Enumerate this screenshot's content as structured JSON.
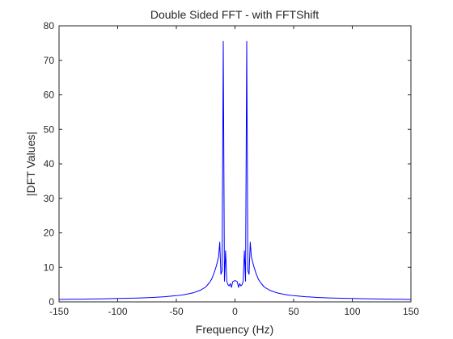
{
  "chart_data": {
    "type": "line",
    "title": "Double Sided FFT - with FFTShift",
    "xlabel": "Frequency (Hz)",
    "ylabel": "|DFT Values|",
    "xlim": [
      -150,
      150
    ],
    "ylim": [
      0,
      80
    ],
    "xticks": [
      -150,
      -100,
      -50,
      0,
      50,
      100,
      150
    ],
    "yticks": [
      0,
      10,
      20,
      30,
      40,
      50,
      60,
      70,
      80
    ],
    "grid": false,
    "series": [
      {
        "color": "#0000ff",
        "x": [
          -150,
          -140,
          -130,
          -120,
          -110,
          -100,
          -90,
          -80,
          -70,
          -60,
          -50,
          -45,
          -40,
          -35,
          -30,
          -25,
          -22,
          -20,
          -18,
          -16,
          -14,
          -13,
          -12,
          -11,
          -10,
          -9,
          -8,
          -7,
          -6,
          -5,
          -4,
          -3,
          -2,
          -1,
          0,
          1,
          2,
          3,
          4,
          5,
          6,
          7,
          8,
          9,
          10,
          11,
          12,
          13,
          14,
          16,
          18,
          20,
          22,
          25,
          30,
          35,
          40,
          45,
          50,
          60,
          70,
          80,
          90,
          100,
          110,
          120,
          130,
          140,
          150
        ],
        "y": [
          0.7,
          0.75,
          0.8,
          0.85,
          0.9,
          1.0,
          1.05,
          1.15,
          1.3,
          1.5,
          1.8,
          2.0,
          2.3,
          2.7,
          3.3,
          4.3,
          5.5,
          6.5,
          8.2,
          10.3,
          13.0,
          17.3,
          8.0,
          9.0,
          75.5,
          6.0,
          14.8,
          6.0,
          5.0,
          4.6,
          5.3,
          4.2,
          5.8,
          6.0,
          6.2,
          6.0,
          5.8,
          4.2,
          5.3,
          4.6,
          5.0,
          6.0,
          14.8,
          6.0,
          75.5,
          9.0,
          8.0,
          17.3,
          13.0,
          10.3,
          8.2,
          6.5,
          5.5,
          4.3,
          3.3,
          2.7,
          2.3,
          2.0,
          1.8,
          1.5,
          1.3,
          1.15,
          1.05,
          1.0,
          0.9,
          0.85,
          0.8,
          0.75,
          0.7
        ]
      }
    ]
  }
}
